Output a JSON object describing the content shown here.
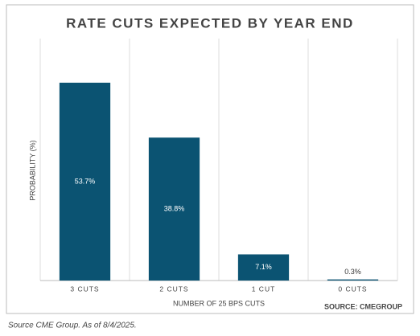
{
  "chart_data": {
    "type": "bar",
    "title": "RATE CUTS EXPECTED BY YEAR END",
    "categories": [
      "3 CUTS",
      "2 CUTS",
      "1 CUT",
      "0 CUTS"
    ],
    "values": [
      53.7,
      38.8,
      7.1,
      0.3
    ],
    "value_labels": [
      "53.7%",
      "38.8%",
      "7.1%",
      "0.3%"
    ],
    "color": "#0b5372",
    "ylim": [
      0,
      60
    ],
    "y_label": "PROBABILITY (%)",
    "x_label": "NUMBER OF 25 BPS CUTS",
    "source": "SOURCE: CMEGROUP",
    "footnote": "Source CME Group. As of 8/4/2025.",
    "grid": true
  }
}
